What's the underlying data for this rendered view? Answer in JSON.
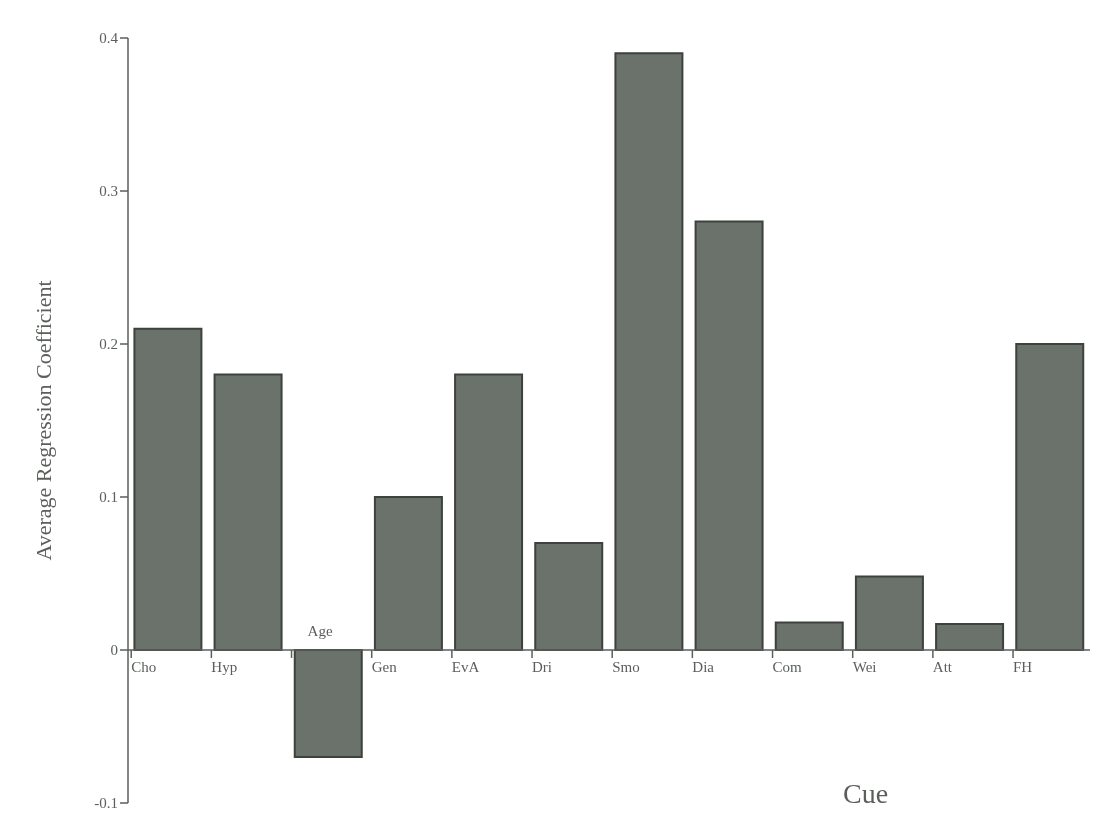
{
  "chart_data": {
    "type": "bar",
    "xlabel": "Cue",
    "ylabel": "Average Regression Coefficient",
    "categories": [
      "Cho",
      "Hyp",
      "Age",
      "Gen",
      "EvA",
      "Dri",
      "Smo",
      "Dia",
      "Com",
      "Wei",
      "Att",
      "FH"
    ],
    "values": [
      0.21,
      0.18,
      -0.07,
      0.1,
      0.18,
      0.07,
      0.39,
      0.28,
      0.018,
      0.048,
      0.017,
      0.2
    ],
    "color": "#6b716b",
    "ylim": [
      -0.1,
      0.4
    ],
    "yticks": [
      -0.1,
      0,
      0.1,
      0.2,
      0.3,
      0.4
    ],
    "grid": false
  }
}
